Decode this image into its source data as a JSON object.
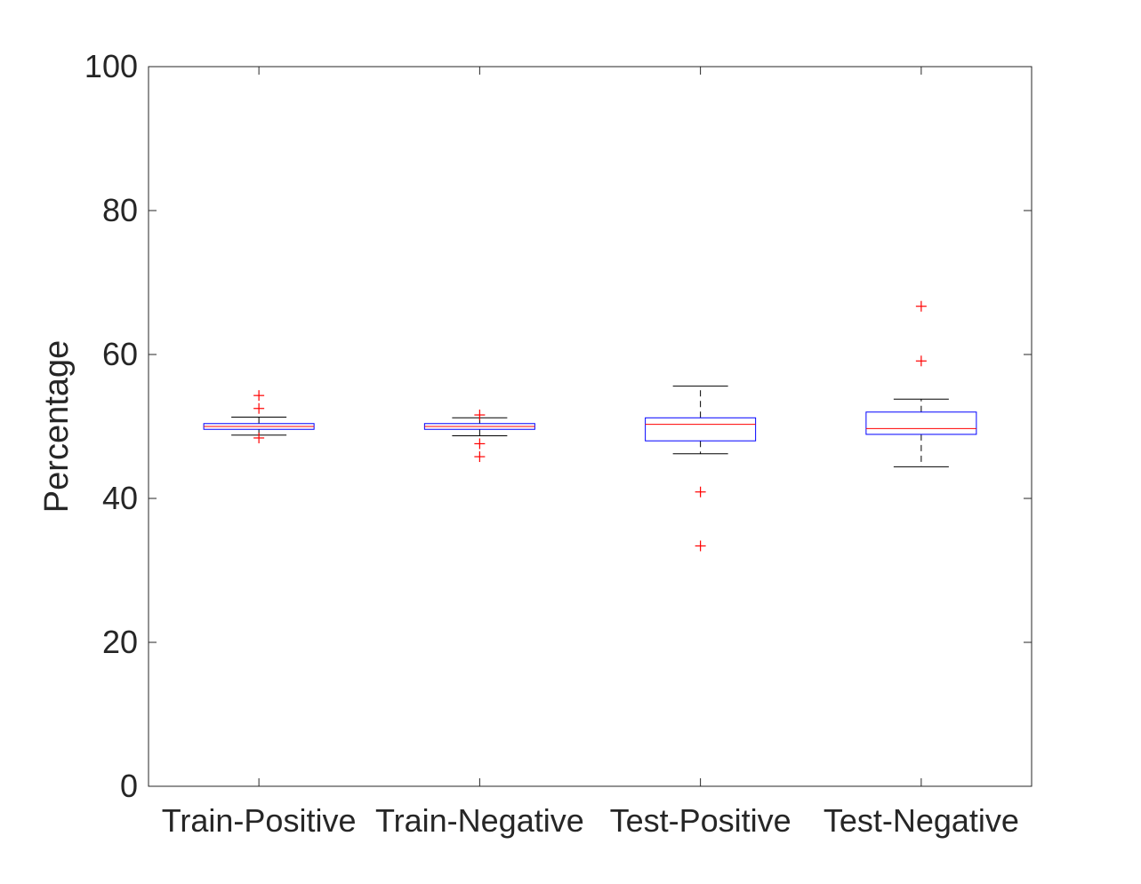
{
  "chart_data": {
    "type": "box",
    "title": "",
    "xlabel": "",
    "ylabel": "Percentage",
    "ylim": [
      0,
      100
    ],
    "yticks": [
      0,
      20,
      40,
      60,
      80,
      100
    ],
    "grid": false,
    "categories": [
      "Train-Positive",
      "Train-Negative",
      "Test-Positive",
      "Test-Negative"
    ],
    "boxes": [
      {
        "category": "Train-Positive",
        "whisker_low": 48.8,
        "q1": 49.6,
        "median": 50.0,
        "q3": 50.4,
        "whisker_high": 51.3,
        "outliers": [
          54.3,
          52.5,
          48.4
        ]
      },
      {
        "category": "Train-Negative",
        "whisker_low": 48.7,
        "q1": 49.6,
        "median": 50.0,
        "q3": 50.4,
        "whisker_high": 51.2,
        "outliers": [
          51.6,
          47.6,
          45.8
        ]
      },
      {
        "category": "Test-Positive",
        "whisker_low": 46.2,
        "q1": 48.0,
        "median": 50.3,
        "q3": 51.2,
        "whisker_high": 55.6,
        "outliers": [
          40.9,
          33.4
        ]
      },
      {
        "category": "Test-Negative",
        "whisker_low": 44.4,
        "q1": 48.9,
        "median": 49.7,
        "q3": 52.0,
        "whisker_high": 53.8,
        "outliers": [
          66.7,
          59.1
        ]
      }
    ],
    "colors": {
      "box": "#0000ff",
      "median": "#ff0000",
      "whisker": "#000000",
      "outlier": "#ff0000",
      "axis": "#262626"
    }
  }
}
